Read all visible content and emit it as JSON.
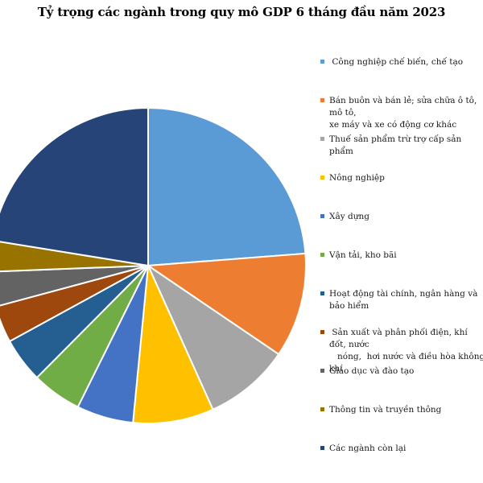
{
  "chart_data": {
    "type": "pie",
    "title": "Tỷ trọng các ngành trong quy mô GDP 6 tháng đầu năm 2023",
    "legend_position": "right",
    "categories": [
      " Công nghiệp chế biến, chế tạo",
      "Bán buôn và bán lẻ; sửa chữa ô tô, mô tô,\nxe máy và xe có động cơ khác",
      "Thuế sản phẩm trừ trợ cấp sản phẩm",
      "Nông nghiệp",
      "Xây dựng",
      "Vận tải, kho bãi",
      "Hoạt động tài chính, ngân hàng và bảo hiểm",
      " Sản xuất và phân phối điện, khí đốt, nước\n   nóng,  hơi nước và điều hòa không khí",
      "Giáo dục và đào tạo",
      "Thông tin và truyền thông",
      "Các ngành còn lại"
    ],
    "values": [
      23.3,
      10.5,
      8.6,
      8.1,
      5.7,
      5.0,
      4.5,
      3.7,
      3.5,
      3.1,
      22.0
    ],
    "colors": [
      "#5b9bd5",
      "#ed7d31",
      "#a5a5a5",
      "#ffc000",
      "#4472c4",
      "#70ad47",
      "#255e91",
      "#9e480e",
      "#636363",
      "#997300",
      "#264478"
    ]
  }
}
